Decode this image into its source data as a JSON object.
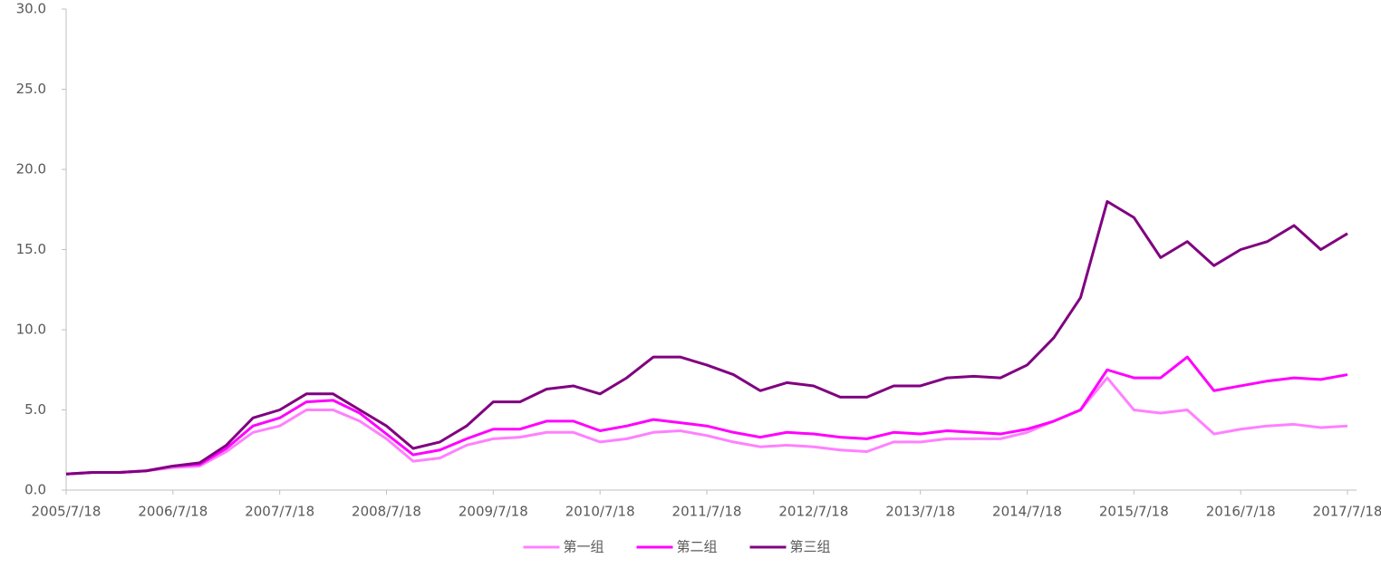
{
  "chart_data": {
    "type": "line",
    "categories": [
      "2005/7/18",
      null,
      null,
      null,
      "2006/7/18",
      null,
      null,
      null,
      "2007/7/18",
      null,
      null,
      null,
      "2008/7/18",
      null,
      null,
      null,
      "2009/7/18",
      null,
      null,
      null,
      "2010/7/18",
      null,
      null,
      null,
      "2011/7/18",
      null,
      null,
      null,
      "2012/7/18",
      null,
      null,
      null,
      "2013/7/18",
      null,
      null,
      null,
      "2014/7/18",
      null,
      null,
      null,
      "2015/7/18",
      null,
      null,
      null,
      "2016/7/18",
      null,
      null,
      null,
      "2017/7/18"
    ],
    "series": [
      {
        "name": "第一组",
        "color": "#ff80ff",
        "values": [
          1.0,
          1.1,
          1.1,
          1.2,
          1.4,
          1.5,
          2.4,
          3.6,
          4.0,
          5.0,
          5.0,
          4.3,
          3.2,
          1.8,
          2.0,
          2.8,
          3.2,
          3.3,
          3.6,
          3.6,
          3.0,
          3.2,
          3.6,
          3.7,
          3.4,
          3.0,
          2.7,
          2.8,
          2.7,
          2.5,
          2.4,
          3.0,
          3.0,
          3.2,
          3.2,
          3.2,
          3.6,
          4.3,
          5.0,
          7.0,
          5.0,
          4.8,
          5.0,
          3.5,
          3.8,
          4.0,
          4.1,
          3.9,
          4.0
        ]
      },
      {
        "name": "第二组",
        "color": "#ff00ff",
        "values": [
          1.0,
          1.1,
          1.1,
          1.2,
          1.5,
          1.6,
          2.6,
          4.0,
          4.5,
          5.5,
          5.6,
          4.8,
          3.5,
          2.2,
          2.5,
          3.2,
          3.8,
          3.8,
          4.3,
          4.3,
          3.7,
          4.0,
          4.4,
          4.2,
          4.0,
          3.6,
          3.3,
          3.6,
          3.5,
          3.3,
          3.2,
          3.6,
          3.5,
          3.7,
          3.6,
          3.5,
          3.8,
          4.3,
          5.0,
          7.5,
          7.0,
          7.0,
          8.3,
          6.2,
          6.5,
          6.8,
          7.0,
          6.9,
          7.2
        ]
      },
      {
        "name": "第三组",
        "color": "#800080",
        "values": [
          1.0,
          1.1,
          1.1,
          1.2,
          1.5,
          1.7,
          2.8,
          4.5,
          5.0,
          6.0,
          6.0,
          5.0,
          4.0,
          2.6,
          3.0,
          4.0,
          5.5,
          5.5,
          6.3,
          6.5,
          6.0,
          7.0,
          8.3,
          8.3,
          7.8,
          7.2,
          6.2,
          6.7,
          6.5,
          5.8,
          5.8,
          6.5,
          6.5,
          7.0,
          7.1,
          7.0,
          7.8,
          9.5,
          12.0,
          18.0,
          17.0,
          14.5,
          15.5,
          14.0,
          15.0,
          15.5,
          16.5,
          15.0,
          16.0
        ]
      }
    ],
    "ylim": [
      0,
      30
    ],
    "yticks": [
      {
        "value": 0,
        "label": "0.0"
      },
      {
        "value": 5,
        "label": "5.0"
      },
      {
        "value": 10,
        "label": "10.0"
      },
      {
        "value": 15,
        "label": "15.0"
      },
      {
        "value": 20,
        "label": "20.0"
      },
      {
        "value": 25,
        "label": "25.0"
      },
      {
        "value": 30,
        "label": "30.0"
      }
    ],
    "grid": false,
    "legend": "bottom"
  }
}
